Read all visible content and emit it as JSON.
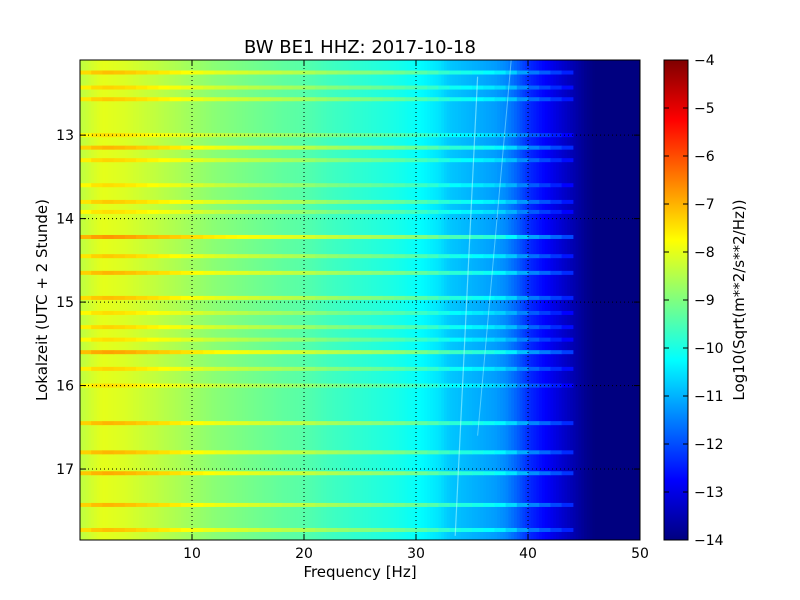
{
  "chart_data": {
    "type": "heatmap",
    "title": "BW BE1 HHZ: 2017-10-18",
    "xlabel": "Frequency [Hz]",
    "ylabel": "Lokalzeit (UTC + 2 Stunde)",
    "xlim": [
      0,
      50
    ],
    "ylim": [
      12.1,
      17.85
    ],
    "y_inverted": true,
    "x_ticks": [
      10,
      20,
      30,
      40,
      50
    ],
    "x_tick_labels": [
      "10",
      "20",
      "30",
      "40",
      "50"
    ],
    "y_ticks": [
      13,
      14,
      15,
      16,
      17
    ],
    "y_tick_labels": [
      "13",
      "14",
      "15",
      "16",
      "17"
    ],
    "grid": true,
    "colormap": "jet",
    "colorbar": {
      "label": "Log10(Sqrt(m**2/s**2/Hz))",
      "range": [
        -14,
        -4
      ],
      "ticks": [
        -4,
        -5,
        -6,
        -7,
        -8,
        -9,
        -10,
        -11,
        -12,
        -13,
        -14
      ],
      "tick_labels": [
        "−4",
        "−5",
        "−6",
        "−7",
        "−8",
        "−9",
        "−10",
        "−11",
        "−12",
        "−13",
        "−14"
      ]
    },
    "frequency_profile": {
      "frequency_hz": [
        0,
        2,
        4,
        6,
        8,
        10,
        12,
        15,
        18,
        20,
        22,
        25,
        28,
        30,
        32,
        33,
        35,
        37,
        38,
        39,
        40,
        41,
        42,
        43,
        44,
        45,
        46,
        50
      ],
      "log10_amplitude": [
        -8.4,
        -8.0,
        -8.1,
        -8.3,
        -8.5,
        -8.7,
        -8.9,
        -9.1,
        -9.3,
        -9.4,
        -9.6,
        -9.8,
        -10.0,
        -10.2,
        -10.5,
        -10.8,
        -11.0,
        -11.2,
        -11.4,
        -11.8,
        -12.3,
        -12.6,
        -12.9,
        -13.2,
        -13.5,
        -13.8,
        -14.0,
        -14.0
      ]
    },
    "bright_bands": [
      {
        "time": 12.25,
        "log10_offset": 0.9
      },
      {
        "time": 12.43,
        "log10_offset": 0.7
      },
      {
        "time": 12.57,
        "log10_offset": 0.8
      },
      {
        "time": 13.0,
        "log10_offset": 0.6
      },
      {
        "time": 13.15,
        "log10_offset": 1.0
      },
      {
        "time": 13.3,
        "log10_offset": 0.7
      },
      {
        "time": 13.6,
        "log10_offset": 0.6
      },
      {
        "time": 13.8,
        "log10_offset": 0.8
      },
      {
        "time": 13.92,
        "log10_offset": 0.6
      },
      {
        "time": 14.22,
        "log10_offset": 1.3
      },
      {
        "time": 14.45,
        "log10_offset": 0.8
      },
      {
        "time": 14.65,
        "log10_offset": 1.0
      },
      {
        "time": 14.95,
        "log10_offset": 0.9
      },
      {
        "time": 15.13,
        "log10_offset": 0.6
      },
      {
        "time": 15.3,
        "log10_offset": 0.7
      },
      {
        "time": 15.45,
        "log10_offset": 0.6
      },
      {
        "time": 15.6,
        "log10_offset": 1.2
      },
      {
        "time": 15.8,
        "log10_offset": 0.7
      },
      {
        "time": 16.0,
        "log10_offset": 0.6
      },
      {
        "time": 16.45,
        "log10_offset": 1.0
      },
      {
        "time": 16.8,
        "log10_offset": 1.0
      },
      {
        "time": 17.05,
        "log10_offset": 1.1
      },
      {
        "time": 17.43,
        "log10_offset": 1.0
      },
      {
        "time": 17.73,
        "log10_offset": 0.9
      }
    ]
  }
}
